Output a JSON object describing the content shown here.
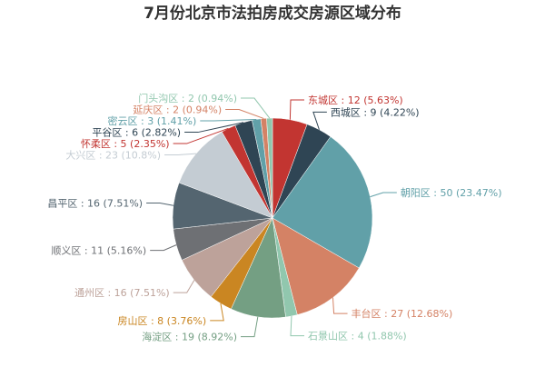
{
  "chart_data": {
    "type": "pie",
    "title": "7月份北京市法拍房成交房源区域分布",
    "label_format": "{name} : {value} ({percent}%)",
    "slices": [
      {
        "name": "东城区",
        "value": 12,
        "percent": "5.63",
        "color": "#c23531"
      },
      {
        "name": "西城区",
        "value": 9,
        "percent": "4.22",
        "color": "#2f4554"
      },
      {
        "name": "朝阳区",
        "value": 50,
        "percent": "23.47",
        "color": "#61a0a8"
      },
      {
        "name": "丰台区",
        "value": 27,
        "percent": "12.68",
        "color": "#d48265"
      },
      {
        "name": "石景山区",
        "value": 4,
        "percent": "1.88",
        "color": "#91c7ae"
      },
      {
        "name": "海淀区",
        "value": 19,
        "percent": "8.92",
        "color": "#749f83"
      },
      {
        "name": "房山区",
        "value": 8,
        "percent": "3.76",
        "color": "#ca8622"
      },
      {
        "name": "通州区",
        "value": 16,
        "percent": "7.51",
        "color": "#bda29a"
      },
      {
        "name": "顺义区",
        "value": 11,
        "percent": "5.16",
        "color": "#6e7074"
      },
      {
        "name": "昌平区",
        "value": 16,
        "percent": "7.51",
        "color": "#546570"
      },
      {
        "name": "大兴区",
        "value": 23,
        "percent": "10.8",
        "color": "#c4ccd3"
      },
      {
        "name": "怀柔区",
        "value": 5,
        "percent": "2.35",
        "color": "#c23531"
      },
      {
        "name": "平谷区",
        "value": 6,
        "percent": "2.82",
        "color": "#2f4554"
      },
      {
        "name": "密云区",
        "value": 3,
        "percent": "1.41",
        "color": "#61a0a8"
      },
      {
        "name": "延庆区",
        "value": 2,
        "percent": "0.94",
        "color": "#d48265"
      },
      {
        "name": "门头沟区",
        "value": 2,
        "percent": "0.94",
        "color": "#91c7ae"
      }
    ]
  }
}
